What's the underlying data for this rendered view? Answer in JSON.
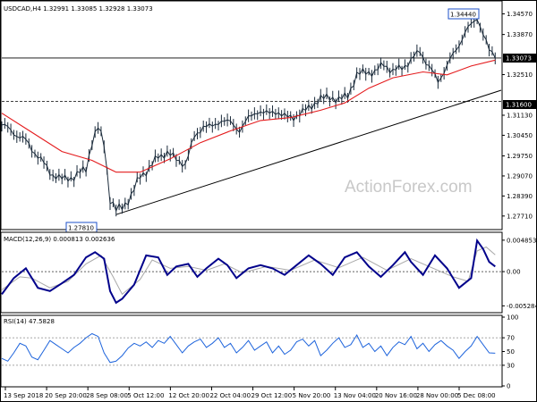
{
  "chart_data": [
    {
      "type": "candlestick",
      "title": "USDCAD,H4  1.32991 1.33085 1.32928 1.33073",
      "watermark": "ActionForex.com",
      "ylim": [
        1.2728,
        1.3495
      ],
      "y_ticks": [
        "1.34570",
        "1.33870",
        "1.33073",
        "1.32510",
        "1.31600",
        "1.31130",
        "1.30450",
        "1.29750",
        "1.29070",
        "1.28390",
        "1.27710"
      ],
      "highlight_labels": {
        "high": "1.34440",
        "low": "1.27810",
        "current": "1.33073",
        "level": "1.31600"
      },
      "x_ticks": [
        "13 Sep 2018",
        "20 Sep 20:00",
        "28 Sep 08:00",
        "5 Oct 12:00",
        "12 Oct 20:00",
        "22 Oct 04:00",
        "29 Oct 12:00",
        "5 Nov 20:00",
        "13 Nov 04:00",
        "20 Nov 16:00",
        "28 Nov 00:00",
        "5 Dec 08:00"
      ],
      "close_path": [
        [
          0,
          1.308
        ],
        [
          4,
          1.3055
        ],
        [
          8,
          1.3025
        ],
        [
          12,
          1.2975
        ],
        [
          16,
          1.292
        ],
        [
          20,
          1.2895
        ],
        [
          24,
          1.2905
        ],
        [
          28,
          1.293
        ],
        [
          30,
          1.3025
        ],
        [
          32,
          1.307
        ],
        [
          34,
          1.3015
        ],
        [
          36,
          1.283
        ],
        [
          38,
          1.279
        ],
        [
          40,
          1.28
        ],
        [
          43,
          1.284
        ],
        [
          46,
          1.2905
        ],
        [
          49,
          1.2935
        ],
        [
          52,
          1.297
        ],
        [
          55,
          1.299
        ],
        [
          58,
          1.296
        ],
        [
          61,
          1.295
        ],
        [
          64,
          1.3035
        ],
        [
          67,
          1.308
        ],
        [
          70,
          1.307
        ],
        [
          73,
          1.31
        ],
        [
          76,
          1.3085
        ],
        [
          79,
          1.3065
        ],
        [
          82,
          1.31
        ],
        [
          85,
          1.313
        ],
        [
          88,
          1.3115
        ],
        [
          91,
          1.313
        ],
        [
          94,
          1.3105
        ],
        [
          97,
          1.311
        ],
        [
          100,
          1.312
        ],
        [
          103,
          1.315
        ],
        [
          106,
          1.3165
        ],
        [
          109,
          1.318
        ],
        [
          112,
          1.316
        ],
        [
          115,
          1.3185
        ],
        [
          118,
          1.3245
        ],
        [
          121,
          1.3265
        ],
        [
          124,
          1.3255
        ],
        [
          127,
          1.329
        ],
        [
          130,
          1.326
        ],
        [
          133,
          1.3275
        ],
        [
          136,
          1.33
        ],
        [
          139,
          1.333
        ],
        [
          142,
          1.328
        ],
        [
          145,
          1.3225
        ],
        [
          148,
          1.3285
        ],
        [
          151,
          1.333
        ],
        [
          154,
          1.34
        ],
        [
          157,
          1.3425
        ],
        [
          158,
          1.3444
        ],
        [
          160,
          1.3395
        ],
        [
          162,
          1.333
        ],
        [
          164,
          1.3307
        ]
      ],
      "moving_average": [
        [
          0,
          1.312
        ],
        [
          10,
          1.3055
        ],
        [
          20,
          1.299
        ],
        [
          30,
          1.296
        ],
        [
          38,
          1.292
        ],
        [
          46,
          1.292
        ],
        [
          56,
          1.2965
        ],
        [
          66,
          1.302
        ],
        [
          76,
          1.306
        ],
        [
          86,
          1.3095
        ],
        [
          96,
          1.3105
        ],
        [
          106,
          1.313
        ],
        [
          114,
          1.3155
        ],
        [
          122,
          1.3205
        ],
        [
          130,
          1.324
        ],
        [
          140,
          1.326
        ],
        [
          148,
          1.325
        ],
        [
          156,
          1.328
        ],
        [
          164,
          1.33
        ]
      ],
      "trendline": [
        [
          38,
          1.2776
        ],
        [
          166,
          1.3198
        ]
      ],
      "horizontal_lines": [
        1.33073,
        1.316
      ]
    },
    {
      "type": "line",
      "title": "MACD(12,26,9) 0.000813 0.002636",
      "ylim": [
        -0.0062,
        0.0058
      ],
      "y_ticks": [
        "0.004853",
        "0.00",
        "-0.005284"
      ],
      "zero_line": 0,
      "series": [
        {
          "name": "MACD",
          "color": "#00008b",
          "values": [
            [
              0,
              -0.0035
            ],
            [
              4,
              -0.001
            ],
            [
              8,
              0.0005
            ],
            [
              12,
              -0.0025
            ],
            [
              16,
              -0.003
            ],
            [
              20,
              -0.0018
            ],
            [
              24,
              -0.0005
            ],
            [
              28,
              0.0022
            ],
            [
              31,
              0.003
            ],
            [
              34,
              0.002
            ],
            [
              36,
              -0.003
            ],
            [
              38,
              -0.0048
            ],
            [
              40,
              -0.0042
            ],
            [
              44,
              -0.002
            ],
            [
              48,
              0.0025
            ],
            [
              52,
              0.0022
            ],
            [
              55,
              -0.0005
            ],
            [
              58,
              0.0008
            ],
            [
              62,
              0.0012
            ],
            [
              65,
              -0.0008
            ],
            [
              68,
              0.0005
            ],
            [
              72,
              0.002
            ],
            [
              75,
              0.001
            ],
            [
              78,
              -0.001
            ],
            [
              82,
              0.0005
            ],
            [
              86,
              0.001
            ],
            [
              90,
              0.0005
            ],
            [
              94,
              -0.0005
            ],
            [
              98,
              0.001
            ],
            [
              102,
              0.0025
            ],
            [
              106,
              0.0012
            ],
            [
              110,
              -0.0005
            ],
            [
              114,
              0.0022
            ],
            [
              118,
              0.003
            ],
            [
              122,
              0.0008
            ],
            [
              126,
              -0.0008
            ],
            [
              130,
              0.001
            ],
            [
              134,
              0.003
            ],
            [
              136,
              0.0015
            ],
            [
              140,
              -0.0005
            ],
            [
              144,
              0.0025
            ],
            [
              148,
              0.0005
            ],
            [
              152,
              -0.0025
            ],
            [
              156,
              -0.001
            ],
            [
              158,
              0.0048
            ],
            [
              160,
              0.0035
            ],
            [
              162,
              0.0015
            ],
            [
              164,
              0.0008
            ]
          ]
        },
        {
          "name": "Signal",
          "color": "#a8a8a8",
          "values": [
            [
              0,
              -0.0028
            ],
            [
              6,
              -0.0008
            ],
            [
              10,
              -0.001
            ],
            [
              16,
              -0.0025
            ],
            [
              22,
              -0.0015
            ],
            [
              28,
              0.0012
            ],
            [
              33,
              0.0025
            ],
            [
              37,
              -0.0008
            ],
            [
              40,
              -0.0035
            ],
            [
              46,
              -0.0012
            ],
            [
              50,
              0.0018
            ],
            [
              56,
              0.0005
            ],
            [
              62,
              0.0008
            ],
            [
              68,
              0.0002
            ],
            [
              74,
              0.0012
            ],
            [
              80,
              -0.0002
            ],
            [
              88,
              0.0008
            ],
            [
              96,
              0.0002
            ],
            [
              104,
              0.0018
            ],
            [
              112,
              0.0006
            ],
            [
              120,
              0.0022
            ],
            [
              128,
              0.0002
            ],
            [
              136,
              0.002
            ],
            [
              142,
              0.0008
            ],
            [
              150,
              -0.0008
            ],
            [
              155,
              -0.0015
            ],
            [
              158,
              0.0032
            ],
            [
              161,
              0.0038
            ],
            [
              164,
              0.0026
            ]
          ]
        }
      ]
    },
    {
      "type": "line",
      "title": "RSI(14) 47.5828",
      "ylim": [
        0,
        100
      ],
      "y_ticks": [
        "100",
        "70",
        "50",
        "30",
        "0"
      ],
      "levels": [
        70,
        30
      ],
      "series": [
        {
          "name": "RSI",
          "color": "#1e64dc",
          "values": [
            [
              0,
              40
            ],
            [
              2,
              36
            ],
            [
              4,
              48
            ],
            [
              6,
              62
            ],
            [
              8,
              58
            ],
            [
              10,
              42
            ],
            [
              12,
              38
            ],
            [
              14,
              52
            ],
            [
              16,
              66
            ],
            [
              18,
              60
            ],
            [
              20,
              54
            ],
            [
              22,
              48
            ],
            [
              24,
              56
            ],
            [
              26,
              62
            ],
            [
              28,
              70
            ],
            [
              30,
              76
            ],
            [
              32,
              72
            ],
            [
              34,
              48
            ],
            [
              36,
              34
            ],
            [
              38,
              36
            ],
            [
              40,
              44
            ],
            [
              42,
              55
            ],
            [
              44,
              62
            ],
            [
              46,
              58
            ],
            [
              48,
              64
            ],
            [
              50,
              56
            ],
            [
              52,
              66
            ],
            [
              54,
              62
            ],
            [
              56,
              72
            ],
            [
              58,
              60
            ],
            [
              60,
              48
            ],
            [
              62,
              58
            ],
            [
              64,
              64
            ],
            [
              66,
              68
            ],
            [
              68,
              56
            ],
            [
              70,
              62
            ],
            [
              72,
              70
            ],
            [
              74,
              56
            ],
            [
              76,
              62
            ],
            [
              78,
              48
            ],
            [
              80,
              56
            ],
            [
              82,
              66
            ],
            [
              84,
              52
            ],
            [
              86,
              58
            ],
            [
              88,
              64
            ],
            [
              90,
              48
            ],
            [
              92,
              58
            ],
            [
              94,
              46
            ],
            [
              96,
              52
            ],
            [
              98,
              64
            ],
            [
              100,
              68
            ],
            [
              102,
              58
            ],
            [
              104,
              66
            ],
            [
              106,
              44
            ],
            [
              108,
              52
            ],
            [
              110,
              62
            ],
            [
              112,
              70
            ],
            [
              114,
              56
            ],
            [
              116,
              60
            ],
            [
              118,
              74
            ],
            [
              120,
              56
            ],
            [
              122,
              62
            ],
            [
              124,
              50
            ],
            [
              126,
              58
            ],
            [
              128,
              44
            ],
            [
              130,
              56
            ],
            [
              132,
              64
            ],
            [
              134,
              60
            ],
            [
              136,
              72
            ],
            [
              138,
              54
            ],
            [
              140,
              62
            ],
            [
              142,
              50
            ],
            [
              144,
              60
            ],
            [
              146,
              66
            ],
            [
              148,
              58
            ],
            [
              150,
              52
            ],
            [
              152,
              40
            ],
            [
              154,
              50
            ],
            [
              156,
              58
            ],
            [
              158,
              72
            ],
            [
              160,
              60
            ],
            [
              162,
              48
            ],
            [
              164,
              47.58
            ]
          ]
        }
      ]
    }
  ]
}
